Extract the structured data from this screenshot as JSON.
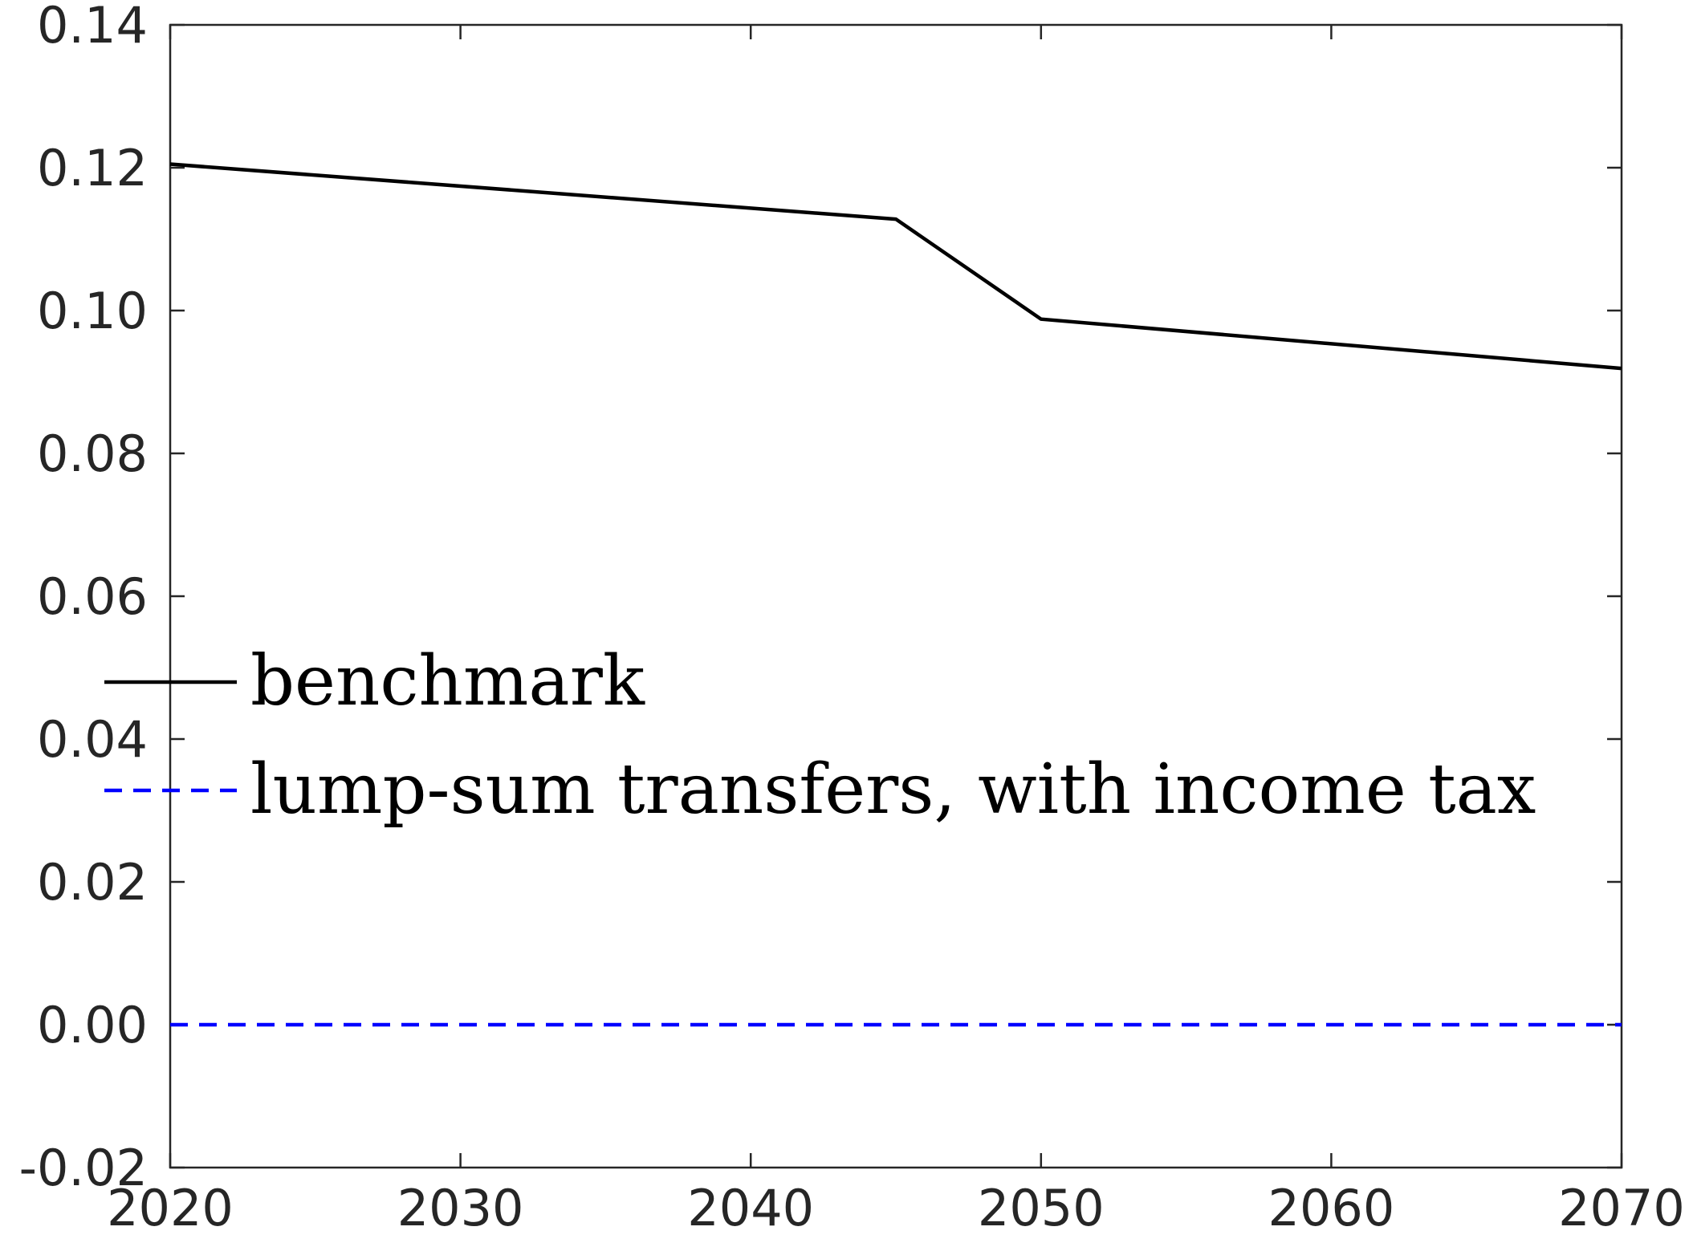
{
  "chart_data": {
    "type": "line",
    "title": "",
    "xlabel": "",
    "ylabel": "",
    "xlim": [
      2020,
      2070
    ],
    "ylim": [
      -0.02,
      0.14
    ],
    "xticks": [
      "2020",
      "2030",
      "2040",
      "2050",
      "2060",
      "2070"
    ],
    "yticks": [
      "-0.02",
      "0.00",
      "0.02",
      "0.04",
      "0.06",
      "0.08",
      "0.10",
      "0.12",
      "0.14"
    ],
    "grid": false,
    "legend_position": "center-left",
    "series": [
      {
        "name": "benchmark",
        "color": "#000000",
        "style": "solid",
        "x": [
          2020,
          2045,
          2050,
          2070
        ],
        "y": [
          0.1205,
          0.1128,
          0.0988,
          0.0919
        ]
      },
      {
        "name": "lump-sum transfers, with income tax",
        "color": "#0000ff",
        "style": "dashed",
        "x": [
          2020,
          2070
        ],
        "y": [
          0.0,
          0.0
        ]
      }
    ]
  }
}
